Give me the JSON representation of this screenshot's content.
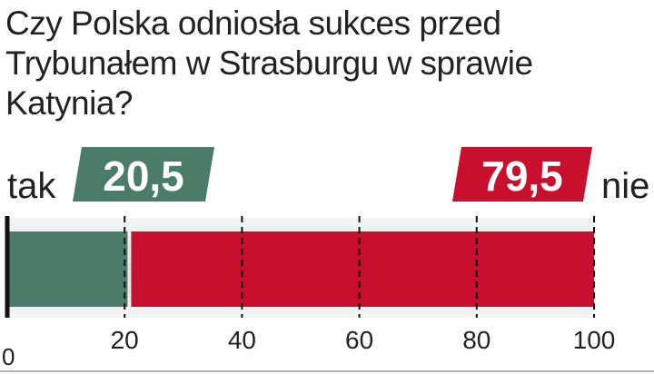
{
  "chart_data": {
    "type": "stacked-bar",
    "title": "Czy Polska odniosła sukces przed Trybunałem w Strasburgu w sprawie Katynia?",
    "categories": [
      null
    ],
    "series": [
      {
        "name": "tak",
        "color": "#4b7b69",
        "values": [
          20.5
        ],
        "value_labels": [
          "20,5"
        ]
      },
      {
        "name": "nie",
        "color": "#c8102e",
        "values": [
          79.5
        ],
        "value_labels": [
          "79,5"
        ]
      }
    ],
    "xlim": [
      0,
      100
    ],
    "xticks": [
      0,
      20,
      40,
      60,
      80,
      100
    ],
    "grid": true
  }
}
